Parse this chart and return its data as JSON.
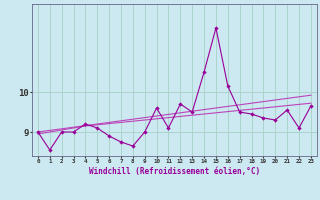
{
  "xlabel": "Windchill (Refroidissement éolien,°C)",
  "background_color": "#cce8f0",
  "grid_color": "#aad4cc",
  "line_color": "#990099",
  "trend_color": "#bb44bb",
  "hours": [
    0,
    1,
    2,
    3,
    4,
    5,
    6,
    7,
    8,
    9,
    10,
    11,
    12,
    13,
    14,
    15,
    16,
    17,
    18,
    19,
    20,
    21,
    22,
    23
  ],
  "y_main": [
    9.0,
    8.55,
    9.0,
    9.0,
    9.2,
    9.1,
    8.9,
    8.75,
    8.65,
    9.0,
    9.6,
    9.1,
    9.7,
    9.5,
    10.5,
    11.6,
    10.15,
    9.5,
    9.45,
    9.35,
    9.3,
    9.55,
    9.1,
    9.65
  ],
  "y_trend1": [
    8.95,
    9.0,
    9.05,
    9.1,
    9.15,
    9.18,
    9.21,
    9.24,
    9.27,
    9.3,
    9.33,
    9.36,
    9.39,
    9.42,
    9.45,
    9.48,
    9.51,
    9.54,
    9.57,
    9.6,
    9.63,
    9.66,
    9.69,
    9.72
  ],
  "y_trend2": [
    9.0,
    9.04,
    9.08,
    9.12,
    9.16,
    9.2,
    9.24,
    9.28,
    9.32,
    9.36,
    9.4,
    9.44,
    9.48,
    9.52,
    9.56,
    9.6,
    9.64,
    9.68,
    9.72,
    9.76,
    9.8,
    9.84,
    9.88,
    9.92
  ],
  "ylim_min": 8.4,
  "ylim_max": 12.2,
  "yticks": [
    9,
    10
  ],
  "xlim_min": -0.5,
  "xlim_max": 23.5
}
